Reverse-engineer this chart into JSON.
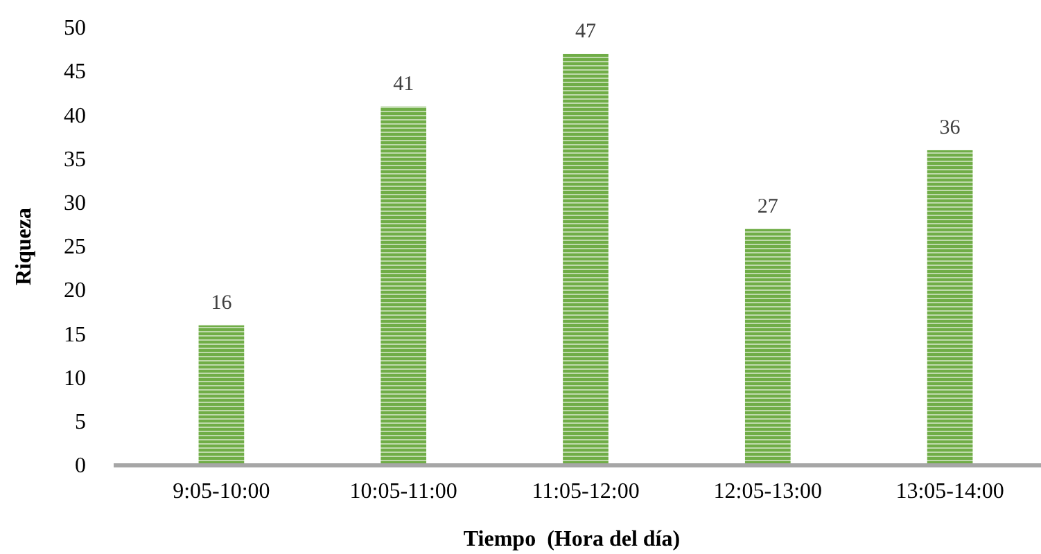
{
  "chart_data": {
    "type": "bar",
    "xlabel": "Tiempo  (Hora del día)",
    "ylabel": "Riqueza",
    "categories": [
      "9:05-10:00",
      "10:05-11:00",
      "11:05-12:00",
      "12:05-13:00",
      "13:05-14:00"
    ],
    "values": [
      16,
      41,
      47,
      27,
      36
    ],
    "color": "#70ad47",
    "ylim": [
      0,
      50
    ],
    "yticks": [
      0,
      5,
      10,
      15,
      20,
      25,
      30,
      35,
      40,
      45,
      50
    ],
    "grid": false,
    "data_labels": true
  }
}
